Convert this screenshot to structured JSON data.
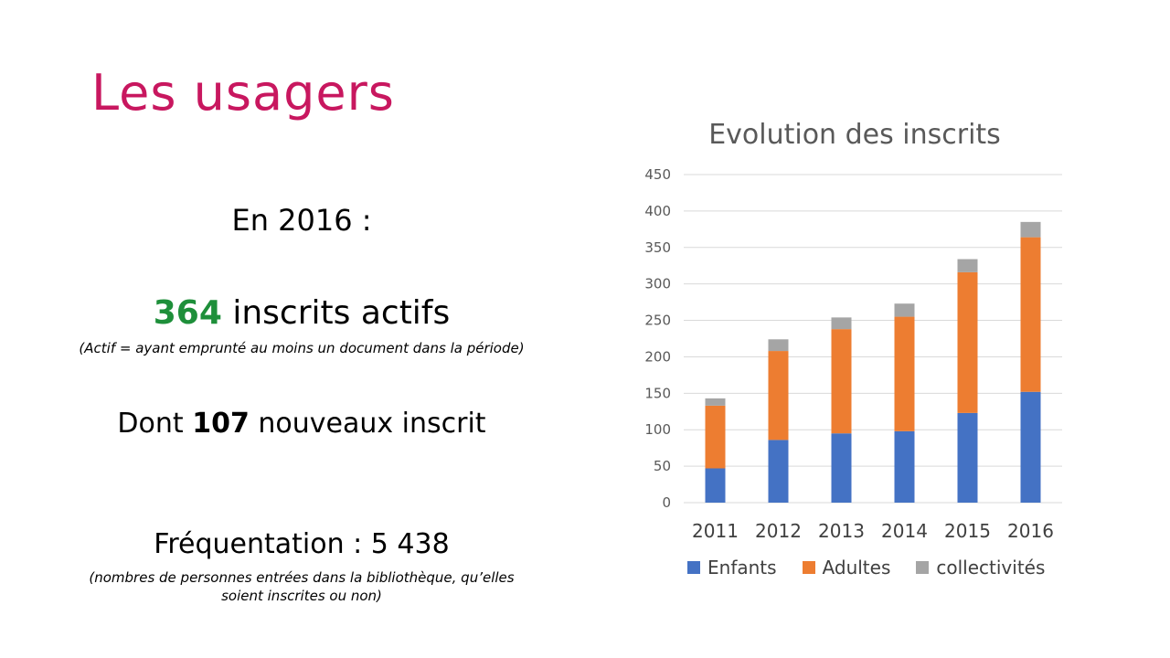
{
  "slide": {
    "title": "Les usagers",
    "year_line": "En 2016 :",
    "inscrits_number": "364",
    "inscrits_text": " inscrits actifs",
    "actif_note": "(Actif = ayant emprunté au moins un document dans la période)",
    "nouveaux_prefix": "Dont ",
    "nouveaux_number": "107",
    "nouveaux_suffix": " nouveaux inscrit",
    "frequentation_line": "Fréquentation  : 5 438",
    "frequentation_note": "(nombres de personnes entrées dans la bibliothèque, qu’elles soient inscrites ou non)"
  },
  "colors": {
    "title": "#c8175f",
    "highlight_number": "#1e8f3a",
    "enfants": "#4472c4",
    "adultes": "#ed7d31",
    "collectivites": "#a5a5a5"
  },
  "chart_data": {
    "type": "bar",
    "stacked": true,
    "title": "Evolution des inscrits",
    "categories": [
      "2011",
      "2012",
      "2013",
      "2014",
      "2015",
      "2016"
    ],
    "series": [
      {
        "name": "Enfants",
        "values": [
          47,
          86,
          95,
          98,
          123,
          152
        ],
        "color": "#4472c4"
      },
      {
        "name": "Adultes",
        "values": [
          86,
          122,
          143,
          157,
          193,
          212
        ],
        "color": "#ed7d31"
      },
      {
        "name": "collectivités",
        "values": [
          10,
          16,
          16,
          18,
          18,
          21
        ],
        "color": "#a5a5a5"
      }
    ],
    "ylim": [
      0,
      450
    ],
    "yticks": [
      "0",
      "50",
      "100",
      "150",
      "200",
      "250",
      "300",
      "350",
      "400",
      "450"
    ],
    "grid": true,
    "legend_position": "bottom"
  }
}
